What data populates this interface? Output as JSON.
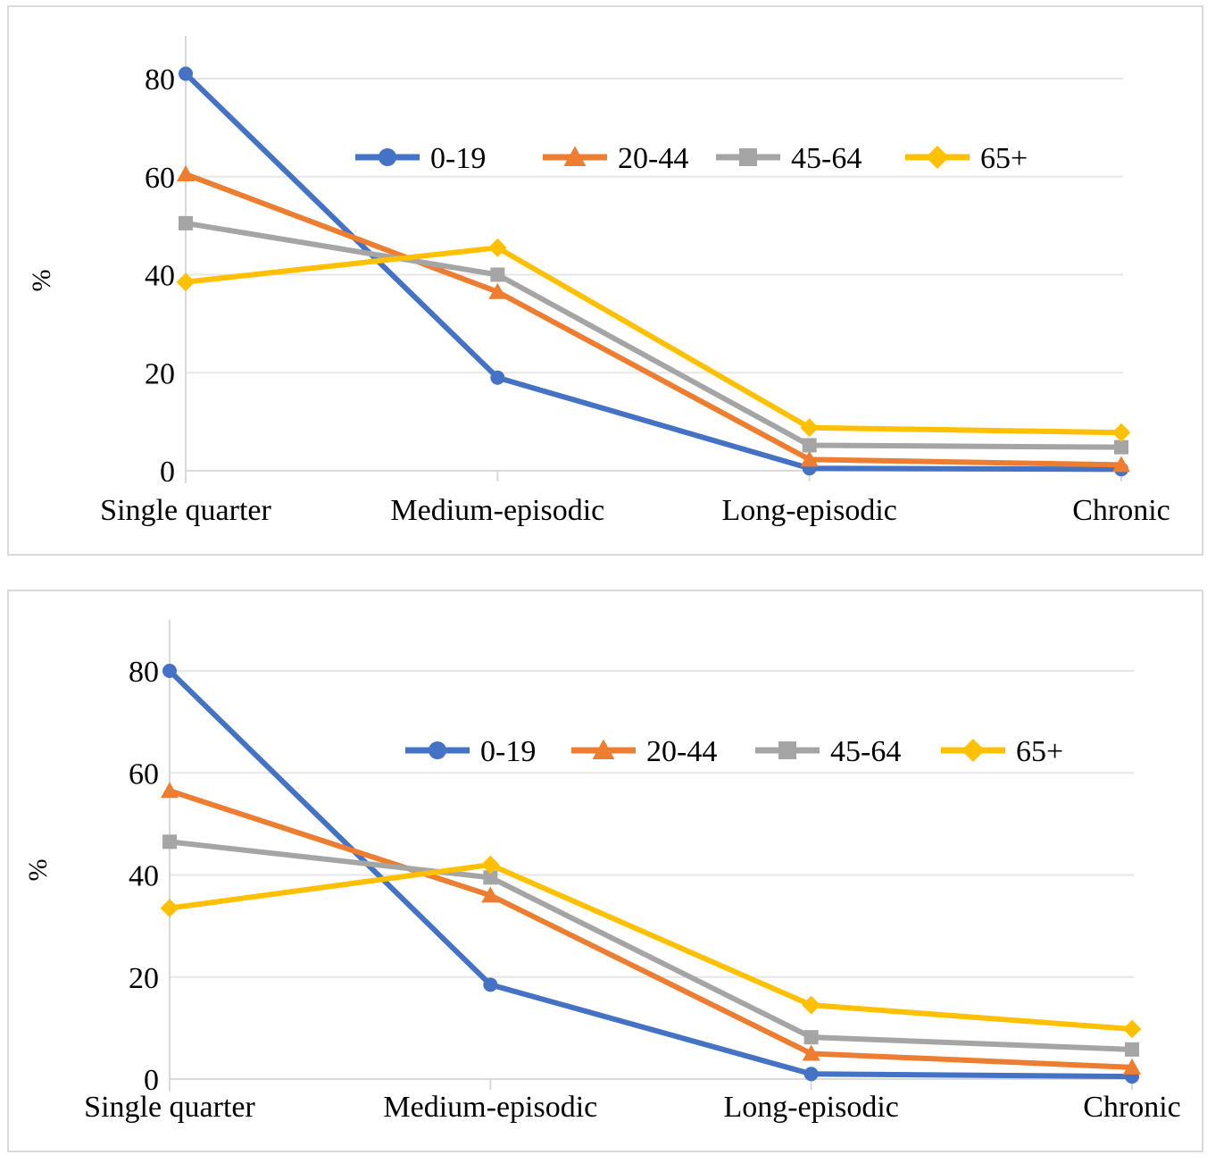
{
  "chart_data": [
    {
      "type": "line",
      "title": "",
      "xlabel": "",
      "ylabel": "%",
      "ylim": [
        0,
        90
      ],
      "yticks": [
        0,
        20,
        40,
        60,
        80
      ],
      "grid": true,
      "legend": "top-center",
      "categories": [
        "Single quarter",
        "Medium-episodic",
        "Long-episodic",
        "Chronic"
      ],
      "series": [
        {
          "name": "0-19",
          "color": "#4472C4",
          "marker": "circle",
          "values": [
            81,
            19,
            0.5,
            0.3
          ]
        },
        {
          "name": "20-44",
          "color": "#ED7D31",
          "marker": "triangle",
          "values": [
            60.5,
            36.5,
            2.3,
            1.2
          ]
        },
        {
          "name": "45-64",
          "color": "#A5A5A5",
          "marker": "square",
          "values": [
            50.5,
            40,
            5.2,
            4.8
          ]
        },
        {
          "name": "65+",
          "color": "#FFC000",
          "marker": "diamond",
          "values": [
            38.5,
            45.5,
            8.8,
            7.8
          ]
        }
      ]
    },
    {
      "type": "line",
      "title": "",
      "xlabel": "",
      "ylabel": "%",
      "ylim": [
        0,
        90
      ],
      "yticks": [
        0,
        20,
        40,
        60,
        80
      ],
      "grid": true,
      "legend": "top-center",
      "categories": [
        "Single quarter",
        "Medium-episodic",
        "Long-episodic",
        "Chronic"
      ],
      "series": [
        {
          "name": "0-19",
          "color": "#4472C4",
          "marker": "circle",
          "values": [
            80,
            18.5,
            1,
            0.5
          ]
        },
        {
          "name": "20-44",
          "color": "#ED7D31",
          "marker": "triangle",
          "values": [
            56.5,
            36,
            5,
            2.3
          ]
        },
        {
          "name": "45-64",
          "color": "#A5A5A5",
          "marker": "square",
          "values": [
            46.5,
            39.5,
            8.2,
            5.8
          ]
        },
        {
          "name": "65+",
          "color": "#FFC000",
          "marker": "diamond",
          "values": [
            33.5,
            42,
            14.5,
            9.8
          ]
        }
      ]
    }
  ]
}
